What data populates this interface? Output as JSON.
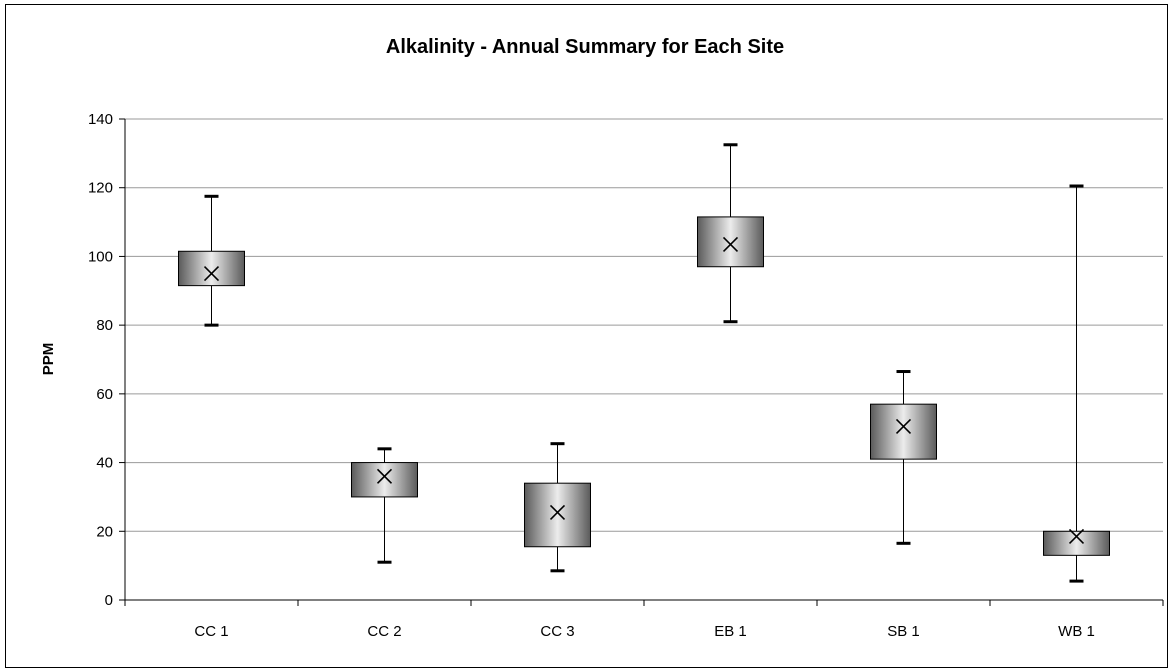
{
  "chart_data": {
    "type": "box",
    "title": "Alkalinity - Annual Summary for Each Site",
    "xlabel": "",
    "ylabel": "PPM",
    "ylim": [
      0,
      140
    ],
    "yticks": [
      0,
      20,
      40,
      60,
      80,
      100,
      120,
      140
    ],
    "grid": true,
    "categories": [
      "CC 1",
      "CC 2",
      "CC 3",
      "EB 1",
      "SB 1",
      "WB 1"
    ],
    "boxes": [
      {
        "site": "CC 1",
        "min": 80,
        "q1": 91.5,
        "mean": 95,
        "q3": 101.5,
        "max": 117.5
      },
      {
        "site": "CC 2",
        "min": 11,
        "q1": 30,
        "mean": 36,
        "q3": 40,
        "max": 44
      },
      {
        "site": "CC 3",
        "min": 8.5,
        "q1": 15.5,
        "mean": 25.5,
        "q3": 34,
        "max": 45.5
      },
      {
        "site": "EB 1",
        "min": 81,
        "q1": 97,
        "mean": 103.5,
        "q3": 111.5,
        "max": 132.5
      },
      {
        "site": "SB 1",
        "min": 16.5,
        "q1": 41,
        "mean": 50.5,
        "q3": 57,
        "max": 66.5
      },
      {
        "site": "WB 1",
        "min": 5.5,
        "q1": 13,
        "mean": 18.5,
        "q3": 20,
        "max": 120.5
      }
    ],
    "colors": {
      "box_dark": "#5a5a5a",
      "box_light": "#ececec",
      "grid": "#9a9a9a"
    }
  }
}
